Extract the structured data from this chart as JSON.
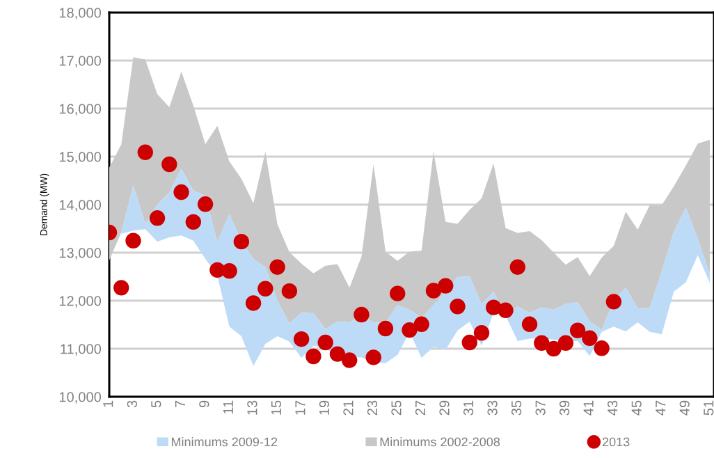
{
  "chart_data": {
    "type": "area",
    "ylabel": "Demand (MW)",
    "x": [
      1,
      2,
      3,
      4,
      5,
      6,
      7,
      8,
      9,
      10,
      11,
      12,
      13,
      14,
      15,
      16,
      17,
      18,
      19,
      20,
      21,
      22,
      23,
      24,
      25,
      26,
      27,
      28,
      29,
      30,
      31,
      32,
      33,
      34,
      35,
      36,
      37,
      38,
      39,
      40,
      41,
      42,
      43,
      44,
      45,
      46,
      47,
      48,
      49,
      50,
      51
    ],
    "xlim": [
      1,
      51.35
    ],
    "xticks": [
      1,
      3,
      5,
      7,
      9,
      11,
      13,
      15,
      17,
      19,
      21,
      23,
      25,
      27,
      29,
      31,
      33,
      35,
      37,
      39,
      41,
      43,
      45,
      47,
      49,
      51
    ],
    "ylim": [
      10000,
      18000
    ],
    "yticks": [
      {
        "value": 10000,
        "label": "10,000"
      },
      {
        "value": 11000,
        "label": "11,000"
      },
      {
        "value": 12000,
        "label": "12,000"
      },
      {
        "value": 13000,
        "label": "13,000"
      },
      {
        "value": 14000,
        "label": "14,000"
      },
      {
        "value": 15000,
        "label": "15,000"
      },
      {
        "value": 16000,
        "label": "16,000"
      },
      {
        "value": 17000,
        "label": "17,000"
      },
      {
        "value": 18000,
        "label": "18,000"
      }
    ],
    "grid": "y",
    "legend": "bottom",
    "series": [
      {
        "name": "Minimums 2009-12",
        "color": "#bddbf7",
        "x": [
          2,
          3,
          4,
          5,
          6,
          7,
          8,
          9,
          10,
          11,
          12,
          13,
          14,
          15,
          16,
          17,
          18,
          19,
          20,
          21,
          22,
          23,
          24,
          25,
          26,
          27,
          28,
          29,
          30,
          31,
          32,
          33,
          34,
          35,
          36,
          37,
          38,
          39,
          40,
          41,
          42,
          43,
          44,
          45,
          46,
          47,
          48,
          49,
          50,
          51
        ],
        "values": [
          null,
          null,
          null,
          null,
          null,
          null,
          null,
          null,
          null,
          null,
          null,
          null,
          null,
          null,
          null,
          null,
          null,
          null,
          null,
          null,
          null,
          null,
          null,
          null,
          null,
          null,
          null,
          null,
          null,
          null,
          null,
          null,
          null,
          null,
          null,
          null,
          null,
          null,
          null,
          null,
          null,
          null,
          null,
          null,
          null,
          null,
          null,
          null,
          null,
          null
        ],
        "upper": [
          13420,
          14400,
          13600,
          14000,
          14250,
          14750,
          14290,
          14190,
          13220,
          13800,
          13250,
          12870,
          12700,
          12000,
          11520,
          11750,
          11740,
          11410,
          11570,
          11550,
          11690,
          11550,
          11540,
          11910,
          11810,
          11650,
          11910,
          12200,
          12490,
          12510,
          11930,
          12190,
          11690,
          11880,
          11750,
          11860,
          11810,
          11930,
          11970,
          11570,
          11400,
          12000,
          12270,
          11840,
          11850,
          12610,
          13430,
          13940,
          13290,
          12560
        ],
        "lower": [
          13390,
          13460,
          13490,
          13230,
          13320,
          13360,
          13250,
          12870,
          12520,
          11460,
          11260,
          10640,
          11100,
          11260,
          11150,
          10810,
          11060,
          11010,
          10850,
          10830,
          10820,
          10710,
          10700,
          10870,
          11350,
          10810,
          11040,
          10980,
          11380,
          11560,
          11060,
          11750,
          11690,
          11160,
          11210,
          11220,
          11190,
          11160,
          11160,
          10850,
          11350,
          11460,
          11360,
          11550,
          11350,
          11300,
          12190,
          12380,
          12950,
          12370
        ]
      },
      {
        "name": "Minimums 2002-2008",
        "color": "#c8c8c8",
        "values": [
          null,
          null,
          null,
          null,
          null,
          null,
          null,
          null,
          null,
          null,
          null,
          null,
          null,
          null,
          null,
          null,
          null,
          null,
          null,
          null,
          null,
          null,
          null,
          null,
          null,
          null,
          null,
          null,
          null,
          null,
          null,
          null,
          null,
          null,
          null,
          null,
          null,
          null,
          null,
          null,
          null,
          null,
          null,
          null,
          null,
          null,
          null,
          null,
          null,
          null,
          null
        ],
        "upper": [
          14770,
          15250,
          17070,
          17020,
          16300,
          16030,
          16770,
          16060,
          15260,
          15640,
          14900,
          14540,
          14030,
          15100,
          13590,
          13010,
          12770,
          12570,
          12730,
          12760,
          12270,
          12920,
          14840,
          13020,
          12830,
          13020,
          13040,
          15110,
          13640,
          13600,
          13890,
          14130,
          14860,
          13510,
          13410,
          13450,
          13260,
          13000,
          12750,
          12910,
          12510,
          12900,
          13140,
          13850,
          13480,
          13990,
          13990,
          14380,
          14810,
          15270,
          15350
        ],
        "lower": [
          12840,
          13420,
          14400,
          13600,
          14000,
          14250,
          14750,
          14290,
          14190,
          13220,
          13800,
          13250,
          12870,
          12700,
          12000,
          11520,
          11750,
          11740,
          11410,
          11570,
          11550,
          11690,
          11550,
          11540,
          11910,
          11810,
          11650,
          11910,
          12200,
          12490,
          12510,
          11930,
          12190,
          11690,
          11880,
          11750,
          11860,
          11810,
          11930,
          11970,
          11570,
          11400,
          12000,
          12270,
          11840,
          11850,
          12610,
          13430,
          13940,
          13290,
          12560
        ]
      },
      {
        "name": "2013",
        "type": "scatter",
        "color": "#cc0000",
        "marker": "circle",
        "x": [
          1,
          2,
          3,
          4,
          5,
          6,
          7,
          8,
          9,
          10,
          11,
          12,
          13,
          14,
          15,
          16,
          17,
          18,
          19,
          20,
          21,
          22,
          23,
          24,
          25,
          26,
          27,
          28,
          29,
          30,
          31,
          32,
          33,
          34,
          35,
          36,
          37,
          38,
          39,
          40,
          41,
          42,
          43
        ],
        "values": [
          13420,
          12270,
          13250,
          15090,
          13720,
          14840,
          14260,
          13640,
          14010,
          12640,
          12620,
          13230,
          11950,
          12250,
          12700,
          12200,
          11200,
          10840,
          11130,
          10890,
          10760,
          11710,
          10820,
          11420,
          12150,
          11390,
          11510,
          12210,
          12310,
          11880,
          11130,
          11330,
          11860,
          11800,
          12700,
          11510,
          11120,
          11000,
          11120,
          11380,
          11220,
          11010,
          11980
        ]
      }
    ]
  }
}
